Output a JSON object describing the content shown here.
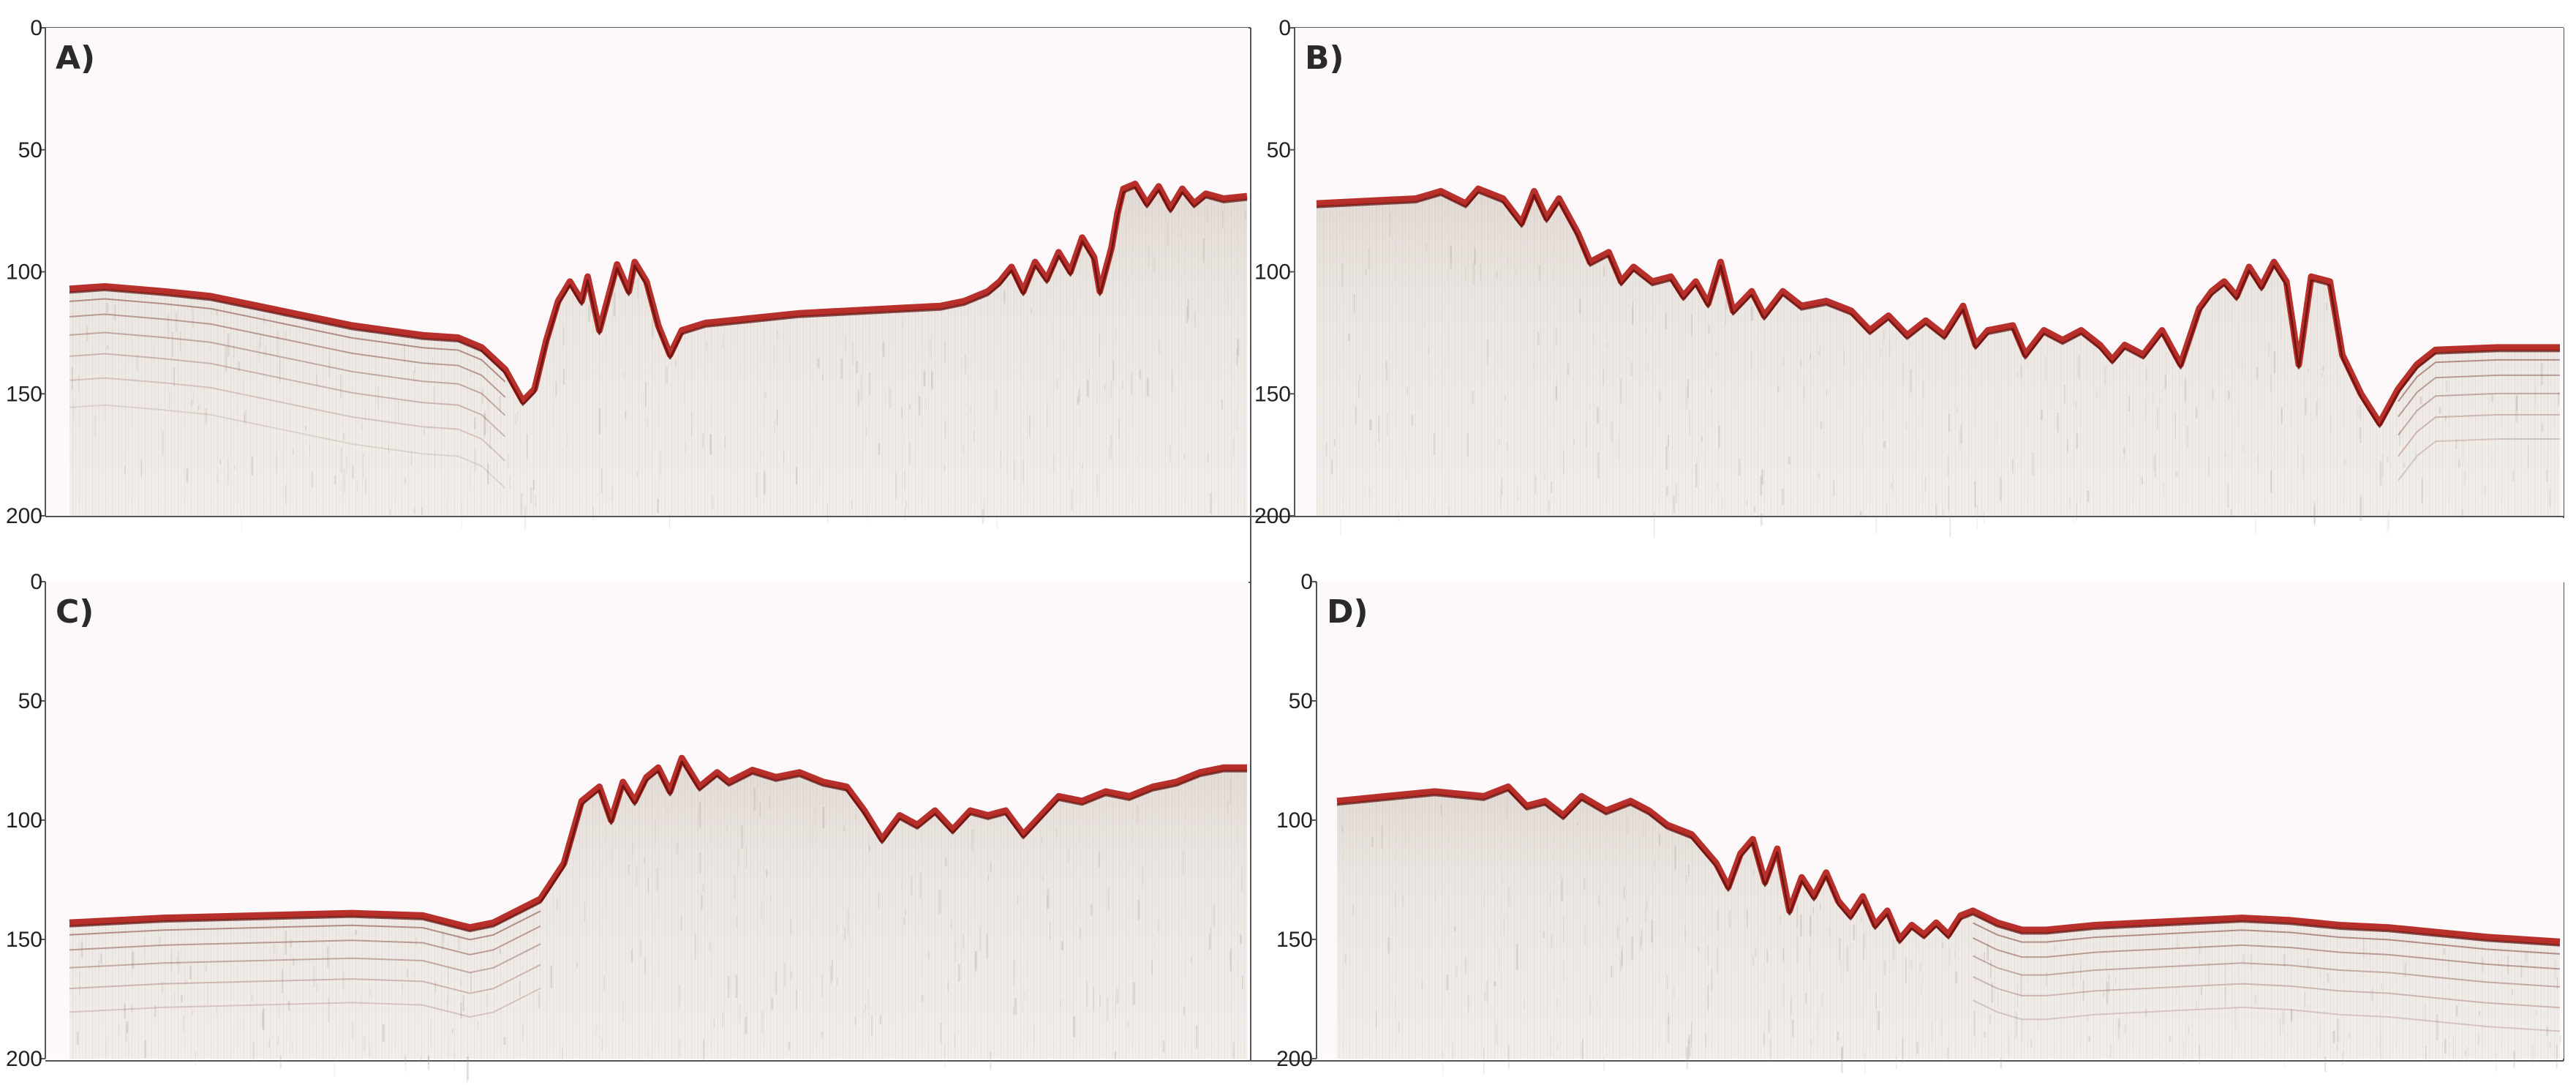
{
  "figure": {
    "panels": [
      {
        "label": "A)",
        "y_ticks": [
          "0",
          "50",
          "100",
          "150",
          "200"
        ],
        "y_range": [
          0,
          200
        ],
        "seafloor_profile": [
          [
            0,
            107
          ],
          [
            3,
            106
          ],
          [
            8,
            108
          ],
          [
            12,
            110
          ],
          [
            16,
            114
          ],
          [
            20,
            118
          ],
          [
            24,
            122
          ],
          [
            27,
            124
          ],
          [
            30,
            126
          ],
          [
            33,
            127
          ],
          [
            35,
            131
          ],
          [
            37,
            140
          ],
          [
            38.5,
            153
          ],
          [
            39.5,
            148
          ],
          [
            40.5,
            128
          ],
          [
            41.5,
            112
          ],
          [
            42.5,
            104
          ],
          [
            43.5,
            112
          ],
          [
            44,
            102
          ],
          [
            45,
            124
          ],
          [
            46.5,
            97
          ],
          [
            47.5,
            108
          ],
          [
            48,
            96
          ],
          [
            49,
            104
          ],
          [
            50,
            122
          ],
          [
            51,
            134
          ],
          [
            52,
            124
          ],
          [
            54,
            121
          ],
          [
            58,
            119
          ],
          [
            62,
            117
          ],
          [
            66,
            116
          ],
          [
            70,
            115
          ],
          [
            74,
            114
          ],
          [
            76,
            112
          ],
          [
            78,
            108
          ],
          [
            79,
            104
          ],
          [
            80,
            98
          ],
          [
            81,
            108
          ],
          [
            82,
            96
          ],
          [
            83,
            103
          ],
          [
            84,
            92
          ],
          [
            85,
            100
          ],
          [
            86,
            86
          ],
          [
            87,
            94
          ],
          [
            87.5,
            108
          ],
          [
            88.5,
            90
          ],
          [
            89,
            76
          ],
          [
            89.5,
            66
          ],
          [
            90.5,
            64
          ],
          [
            91.5,
            72
          ],
          [
            92.5,
            65
          ],
          [
            93.5,
            74
          ],
          [
            94.5,
            66
          ],
          [
            95.5,
            72
          ],
          [
            96.5,
            68
          ],
          [
            98,
            70
          ],
          [
            100,
            69
          ]
        ],
        "reflectors": 6,
        "reflector_range": [
          0,
          38
        ]
      },
      {
        "label": "B)",
        "y_ticks": [
          "0",
          "50",
          "100",
          "150",
          "200"
        ],
        "y_range": [
          0,
          200
        ],
        "seafloor_profile": [
          [
            0,
            72
          ],
          [
            4,
            71
          ],
          [
            8,
            70
          ],
          [
            10,
            67
          ],
          [
            12,
            72
          ],
          [
            13,
            66
          ],
          [
            15,
            70
          ],
          [
            16.5,
            80
          ],
          [
            17.5,
            67
          ],
          [
            18.5,
            78
          ],
          [
            19.5,
            70
          ],
          [
            21,
            84
          ],
          [
            22,
            96
          ],
          [
            23.5,
            92
          ],
          [
            24.5,
            104
          ],
          [
            25.5,
            98
          ],
          [
            27,
            104
          ],
          [
            28.5,
            102
          ],
          [
            29.5,
            110
          ],
          [
            30.5,
            104
          ],
          [
            31.5,
            113
          ],
          [
            32.5,
            96
          ],
          [
            33.5,
            116
          ],
          [
            35,
            108
          ],
          [
            36,
            118
          ],
          [
            37.5,
            108
          ],
          [
            39,
            114
          ],
          [
            41,
            112
          ],
          [
            43,
            116
          ],
          [
            44.5,
            124
          ],
          [
            46,
            118
          ],
          [
            47.5,
            126
          ],
          [
            49,
            120
          ],
          [
            50.5,
            126
          ],
          [
            52,
            114
          ],
          [
            53,
            130
          ],
          [
            54,
            124
          ],
          [
            56,
            122
          ],
          [
            57,
            134
          ],
          [
            58.5,
            124
          ],
          [
            60,
            128
          ],
          [
            61.5,
            124
          ],
          [
            63,
            130
          ],
          [
            64,
            136
          ],
          [
            65,
            130
          ],
          [
            66.5,
            134
          ],
          [
            68,
            124
          ],
          [
            69.5,
            138
          ],
          [
            71,
            115
          ],
          [
            72,
            108
          ],
          [
            73,
            104
          ],
          [
            74,
            110
          ],
          [
            75,
            98
          ],
          [
            76,
            106
          ],
          [
            77,
            96
          ],
          [
            78,
            104
          ],
          [
            79,
            138
          ],
          [
            80,
            102
          ],
          [
            81.5,
            104
          ],
          [
            82.5,
            134
          ],
          [
            84,
            150
          ],
          [
            85.5,
            162
          ],
          [
            87,
            148
          ],
          [
            88.5,
            138
          ],
          [
            90,
            132
          ],
          [
            95,
            131
          ],
          [
            100,
            131
          ]
        ],
        "reflectors": 5,
        "reflector_range": [
          86,
          100
        ]
      },
      {
        "label": "C)",
        "y_ticks": [
          "0",
          "50",
          "100",
          "150",
          "200"
        ],
        "y_range": [
          0,
          200
        ],
        "seafloor_profile": [
          [
            0,
            143
          ],
          [
            8,
            141
          ],
          [
            16,
            140
          ],
          [
            24,
            139
          ],
          [
            30,
            140
          ],
          [
            34,
            145
          ],
          [
            36,
            143
          ],
          [
            38,
            138
          ],
          [
            40,
            133
          ],
          [
            42,
            118
          ],
          [
            43.5,
            92
          ],
          [
            45,
            86
          ],
          [
            46,
            100
          ],
          [
            47,
            84
          ],
          [
            48,
            92
          ],
          [
            49,
            82
          ],
          [
            50,
            78
          ],
          [
            51,
            88
          ],
          [
            52,
            74
          ],
          [
            53.5,
            86
          ],
          [
            55,
            80
          ],
          [
            56,
            84
          ],
          [
            58,
            79
          ],
          [
            60,
            82
          ],
          [
            62,
            80
          ],
          [
            64,
            84
          ],
          [
            66,
            86
          ],
          [
            67.5,
            96
          ],
          [
            69,
            108
          ],
          [
            70.5,
            98
          ],
          [
            72,
            102
          ],
          [
            73.5,
            96
          ],
          [
            75,
            104
          ],
          [
            76.5,
            96
          ],
          [
            78,
            98
          ],
          [
            79.5,
            96
          ],
          [
            81,
            106
          ],
          [
            82.5,
            98
          ],
          [
            84,
            90
          ],
          [
            86,
            92
          ],
          [
            88,
            88
          ],
          [
            90,
            90
          ],
          [
            92,
            86
          ],
          [
            94,
            84
          ],
          [
            96,
            80
          ],
          [
            98,
            78
          ],
          [
            100,
            78
          ]
        ],
        "reflectors": 5,
        "reflector_range": [
          0,
          40
        ]
      },
      {
        "label": "D)",
        "y_ticks": [
          "0",
          "50",
          "100",
          "150",
          "200"
        ],
        "y_range": [
          0,
          200
        ],
        "seafloor_profile": [
          [
            0,
            92
          ],
          [
            4,
            90
          ],
          [
            8,
            88
          ],
          [
            12,
            90
          ],
          [
            14,
            86
          ],
          [
            15.5,
            94
          ],
          [
            17,
            92
          ],
          [
            18.5,
            98
          ],
          [
            20,
            90
          ],
          [
            22,
            96
          ],
          [
            24,
            92
          ],
          [
            25.5,
            96
          ],
          [
            27,
            102
          ],
          [
            29,
            106
          ],
          [
            31,
            118
          ],
          [
            32,
            128
          ],
          [
            33,
            114
          ],
          [
            34,
            108
          ],
          [
            35,
            126
          ],
          [
            36,
            112
          ],
          [
            37,
            138
          ],
          [
            38,
            124
          ],
          [
            39,
            132
          ],
          [
            40,
            122
          ],
          [
            41,
            134
          ],
          [
            42,
            140
          ],
          [
            43,
            132
          ],
          [
            44,
            144
          ],
          [
            45,
            138
          ],
          [
            46,
            150
          ],
          [
            47,
            144
          ],
          [
            48,
            148
          ],
          [
            49,
            143
          ],
          [
            50,
            148
          ],
          [
            51,
            140
          ],
          [
            52,
            138
          ],
          [
            54,
            143
          ],
          [
            56,
            146
          ],
          [
            58,
            146
          ],
          [
            62,
            144
          ],
          [
            66,
            143
          ],
          [
            70,
            142
          ],
          [
            74,
            141
          ],
          [
            78,
            142
          ],
          [
            82,
            144
          ],
          [
            86,
            145
          ],
          [
            90,
            147
          ],
          [
            94,
            149
          ],
          [
            97,
            150
          ],
          [
            100,
            151
          ]
        ],
        "reflectors": 5,
        "reflector_range": [
          52,
          100
        ]
      }
    ]
  }
}
